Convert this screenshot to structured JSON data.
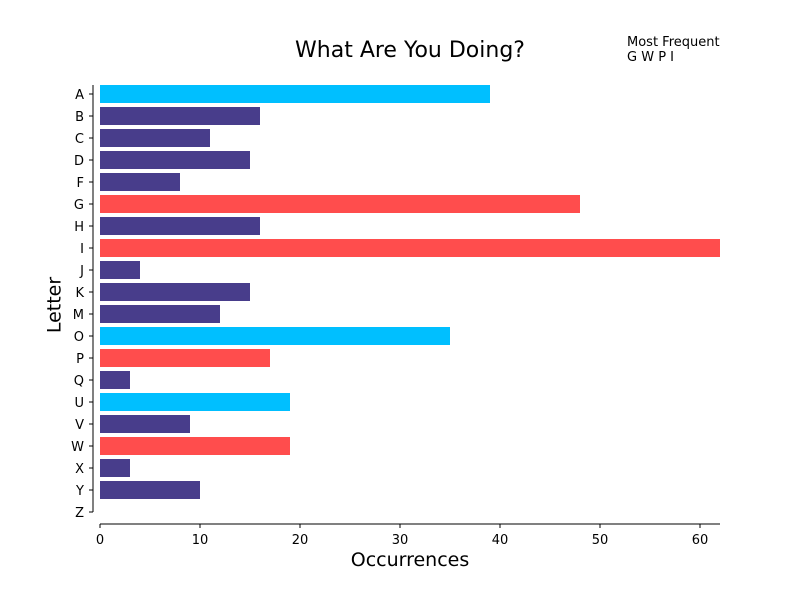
{
  "chart_data": {
    "type": "bar",
    "orientation": "horizontal",
    "title": "What Are You Doing?",
    "xlabel": "Occurrences",
    "ylabel": "Letter",
    "xlim": [
      0,
      62
    ],
    "xticks": [
      0,
      10,
      20,
      30,
      40,
      50,
      60
    ],
    "grid": false,
    "categories": [
      "A",
      "B",
      "C",
      "D",
      "F",
      "G",
      "H",
      "I",
      "J",
      "K",
      "M",
      "O",
      "P",
      "Q",
      "U",
      "V",
      "W",
      "X",
      "Y",
      "Z"
    ],
    "values": [
      39,
      16,
      11,
      15,
      8,
      48,
      16,
      62,
      4,
      15,
      12,
      35,
      17,
      3,
      19,
      9,
      19,
      3,
      10,
      0
    ],
    "bar_groups": [
      "vowel",
      "other",
      "other",
      "other",
      "other",
      "frequent",
      "other",
      "frequent",
      "other",
      "other",
      "other",
      "vowel",
      "frequent",
      "other",
      "vowel",
      "other",
      "frequent",
      "other",
      "other",
      "other"
    ],
    "colors": {
      "vowel": "#00bfff",
      "frequent": "#ff4d4d",
      "other": "#483d8b"
    },
    "annotation": {
      "line1": "Most Frequent",
      "line2": "G W P I"
    }
  }
}
